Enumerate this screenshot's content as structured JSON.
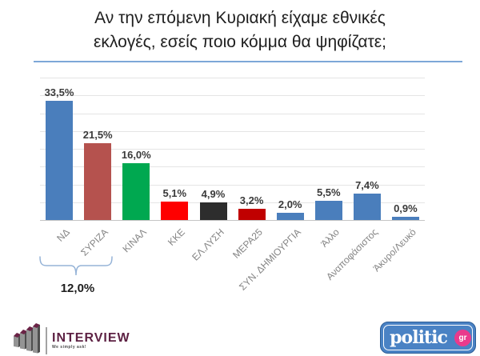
{
  "title": {
    "line1": "Αν την επόμενη Κυριακή είχαμε εθνικές",
    "line2": "εκλογές, εσείς ποιο κόμμα θα ψηφίζατε;"
  },
  "chart_data": {
    "type": "bar",
    "categories": [
      "ΝΔ",
      "ΣΥΡΙΖΑ",
      "ΚΙΝΑΛ",
      "ΚΚΕ",
      "ΕΛ.ΛΥΣΗ",
      "ΜΕΡΑ25",
      "ΣΥΝ. ΔΗΜΙΟΥΡΓΙΑ",
      "Άλλο",
      "Αναποφάσιστος",
      "Άκυρο/Λευκό"
    ],
    "values": [
      33.5,
      21.5,
      16.0,
      5.1,
      4.9,
      3.2,
      2.0,
      5.5,
      7.4,
      0.9
    ],
    "value_labels": [
      "33,5%",
      "21,5%",
      "16,0%",
      "5,1%",
      "4,9%",
      "3,2%",
      "2,0%",
      "5,5%",
      "7,4%",
      "0,9%"
    ],
    "bar_colors": [
      "#4a7ebc",
      "#b5524e",
      "#00a850",
      "#fe0000",
      "#2d2d2d",
      "#c00000",
      "#4a7ebc",
      "#4a7ebc",
      "#4a7ebc",
      "#4a7ebc"
    ],
    "title": "Αν την επόμενη Κυριακή είχαμε εθνικές εκλογές, εσείς ποιο κόμμα θα ψηφίζατε;",
    "xlabel": "",
    "ylabel": "",
    "ylim": [
      0,
      40
    ],
    "gridline_step": 5,
    "grid": true,
    "legend": false,
    "annotation": {
      "label": "12,0%",
      "from_category": "ΝΔ",
      "to_category": "ΣΥΡΙΖΑ"
    }
  },
  "colors": {
    "title_underline": "#7da7d8",
    "bracket": "#95b3d7",
    "gridline": "#e4e4e4",
    "axis_line": "#c4c4c4",
    "value_label": "#3a3a3a",
    "category_label": "#848484"
  },
  "footer": {
    "interview": {
      "brand": "INTERVIEW",
      "tagline": "We simply ask!",
      "brand_color": "#5d2143"
    },
    "politic": {
      "brand": "politic",
      "suffix": "gr",
      "bg_color": "#4a82c4",
      "suffix_bg": "#e93a8c"
    }
  }
}
